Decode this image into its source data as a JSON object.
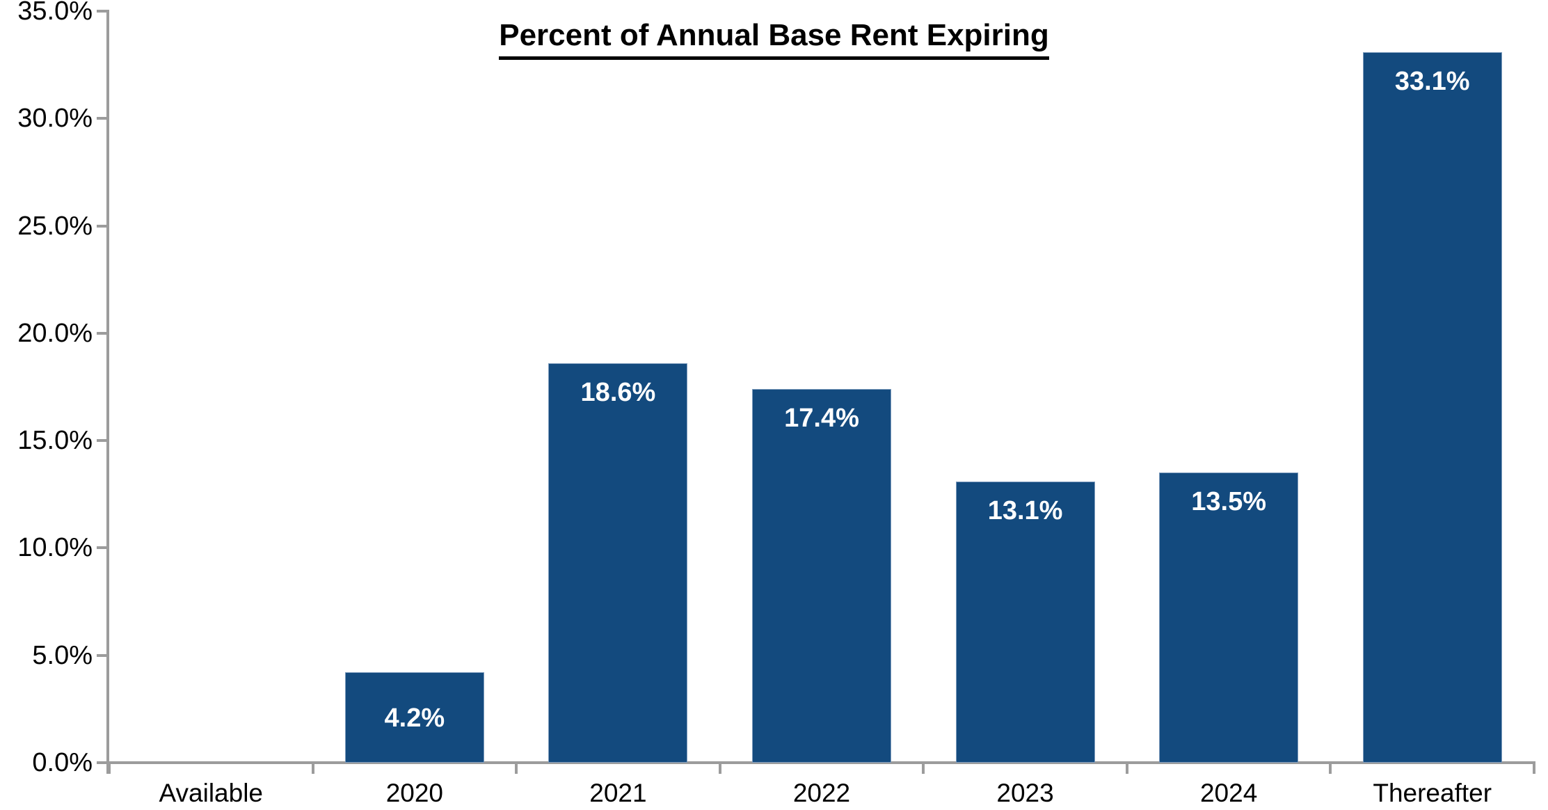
{
  "chart_data": {
    "type": "bar",
    "title": "Percent of Annual Base Rent Expiring",
    "categories": [
      "Available",
      "2020",
      "2021",
      "2022",
      "2023",
      "2024",
      "Thereafter"
    ],
    "values": [
      0,
      4.2,
      18.6,
      17.4,
      13.1,
      13.5,
      33.1
    ],
    "data_labels": [
      "",
      "4.2%",
      "18.6%",
      "17.4%",
      "13.1%",
      "13.5%",
      "33.1%"
    ],
    "xlabel": "",
    "ylabel": "",
    "ylim": [
      0,
      35
    ],
    "ytick_step": 5,
    "ytick_labels": [
      "0.0%",
      "5.0%",
      "10.0%",
      "15.0%",
      "20.0%",
      "25.0%",
      "30.0%",
      "35.0%"
    ],
    "grid": false,
    "legend": false,
    "bar_color": "#134a7e",
    "bar_border_color": "#7e9cbd",
    "data_label_color": "#ffffff",
    "axis_color": "#9c9c9c",
    "text_color": "#000000",
    "background_color": "#ffffff"
  }
}
